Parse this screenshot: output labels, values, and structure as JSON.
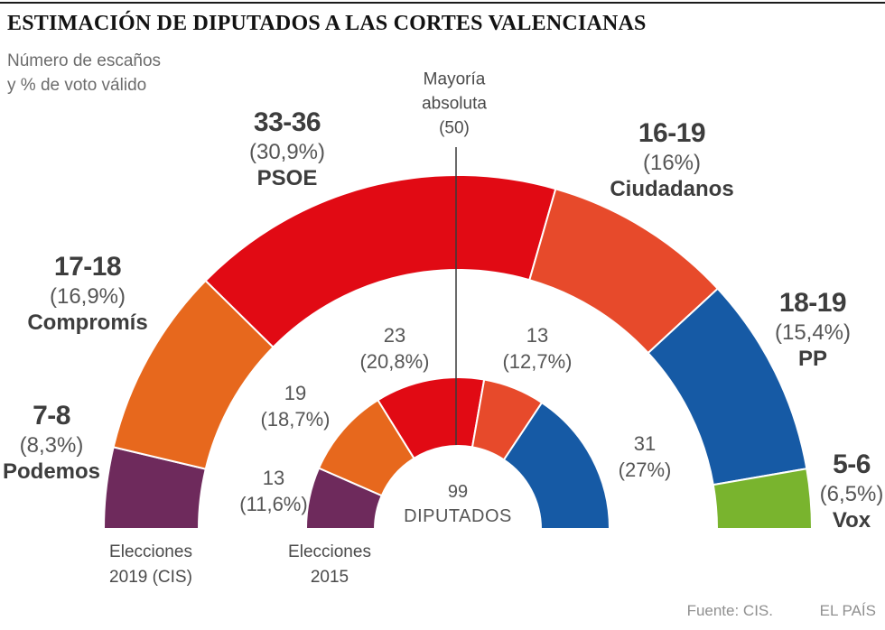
{
  "header": {
    "title": "ESTIMACIÓN DE DIPUTADOS A LAS CORTES VALENCIANAS",
    "subtitle_line1": "Número de escaños",
    "subtitle_line2": "y % de voto válido"
  },
  "majority_label": {
    "line1": "Mayoría",
    "line2": "absoluta",
    "line3": "(50)"
  },
  "center_label": {
    "line1": "99",
    "line2": "DIPUTADOS"
  },
  "captions": {
    "ring_2019_line1": "Elecciones",
    "ring_2019_line2": "2019 (CIS)",
    "ring_2015_line1": "Elecciones",
    "ring_2015_line2": "2015"
  },
  "footer": {
    "source": "Fuente: CIS.",
    "brand": "EL PAÍS"
  },
  "chart_data": {
    "type": "hemicycle",
    "title": "Estimación de diputados a las Cortes Valencianas",
    "total_seats": 99,
    "majority_seats": 50,
    "rings": [
      {
        "id": "2019",
        "label": "Elecciones 2019 (CIS)",
        "segments": [
          {
            "party": "Podemos",
            "seats_label": "7-8",
            "pct_label": "(8,3%)",
            "value": 7.5,
            "color": "#6e2a5c"
          },
          {
            "party": "Compromís",
            "seats_label": "17-18",
            "pct_label": "(16,9%)",
            "value": 17.5,
            "color": "#e7681d"
          },
          {
            "party": "PSOE",
            "seats_label": "33-36",
            "pct_label": "(30,9%)",
            "value": 34.5,
            "color": "#e10a14"
          },
          {
            "party": "Ciudadanos",
            "seats_label": "16-19",
            "pct_label": "(16%)",
            "value": 17.5,
            "color": "#e74a2b"
          },
          {
            "party": "PP",
            "seats_label": "18-19",
            "pct_label": "(15,4%)",
            "value": 18.5,
            "color": "#165aa5"
          },
          {
            "party": "Vox",
            "seats_label": "5-6",
            "pct_label": "(6,5%)",
            "value": 5.5,
            "color": "#79b42e"
          }
        ]
      },
      {
        "id": "2015",
        "label": "Elecciones 2015",
        "segments": [
          {
            "party": "Podemos",
            "seats_label": "13",
            "pct_label": "(11,6%)",
            "value": 13,
            "color": "#6e2a5c"
          },
          {
            "party": "Compromís",
            "seats_label": "19",
            "pct_label": "(18,7%)",
            "value": 19,
            "color": "#e7681d"
          },
          {
            "party": "PSOE",
            "seats_label": "23",
            "pct_label": "(20,8%)",
            "value": 23,
            "color": "#e10a14"
          },
          {
            "party": "Ciudadanos",
            "seats_label": "13",
            "pct_label": "(12,7%)",
            "value": 13,
            "color": "#e74a2b"
          },
          {
            "party": "PP",
            "seats_label": "31",
            "pct_label": "(27%)",
            "value": 31,
            "color": "#165aa5"
          }
        ]
      }
    ]
  }
}
